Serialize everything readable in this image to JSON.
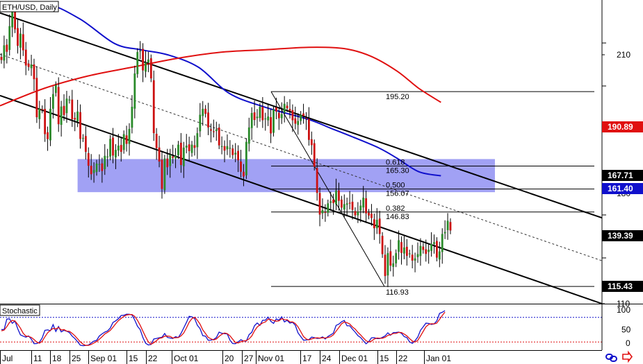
{
  "window": {
    "title": "ETH/USD, Daily"
  },
  "indicator": {
    "title": "Stochastic"
  },
  "colors": {
    "sma_fast": "#1010cc",
    "sma_slow": "#e01010",
    "zone": "#8c8cf2",
    "bull": "#2a8a2a",
    "bear": "#cc1010"
  },
  "icons": [
    "link-icon",
    "arrow-icon"
  ],
  "chart_data": [
    {
      "type": "candlestick",
      "title": "ETH/USD, Daily",
      "ylim": [
        110,
        232
      ],
      "y_ticks": [
        210,
        180,
        110
      ],
      "x_ticks": [
        "Jul",
        "11",
        "18",
        "25",
        "Sep 01",
        "15",
        "22",
        "Oct 01",
        "20",
        "27",
        "Nov 01",
        "17",
        "24",
        "Dec 01",
        "15",
        "22",
        "Jan 01"
      ],
      "price_labels": [
        {
          "value": 190.89,
          "style": "red"
        },
        {
          "value": 167.71,
          "style": "black"
        },
        {
          "value": 161.4,
          "style": "blue"
        },
        {
          "value": 139.39,
          "style": "black"
        },
        {
          "value": 115.43,
          "style": "black"
        }
      ],
      "fibonacci": [
        {
          "price": "195.20"
        },
        {
          "ratio": "0.618",
          "price": "165.30"
        },
        {
          "ratio": "0.500",
          "price": "156.07"
        },
        {
          "ratio": "0.382",
          "price": "146.83"
        },
        {
          "price": "116.93"
        }
      ],
      "fib_swing": {
        "high": 195.2,
        "low": 116.93
      },
      "resistance_zone": [
        154.8,
        168.1
      ],
      "channel": {
        "upper": [
          [
            0,
            226.8
          ],
          [
            1,
            144.5
          ]
        ],
        "lower": [
          [
            0,
            193.6
          ],
          [
            1,
            110.0
          ]
        ]
      },
      "close": [
        207.9,
        213.8,
        211.2,
        221.5,
        228.0,
        220.2,
        213.6,
        218.5,
        211.8,
        205.7,
        205.1,
        206.1,
        200.2,
        184.9,
        188.4,
        188.0,
        178.1,
        176.1,
        188.3,
        194.2,
        197.8,
        182.1,
        189.2,
        185.8,
        192.4,
        192.0,
        184.1,
        184.0,
        187.2,
        176.2,
        176.6,
        171.0,
        165.4,
        162.0,
        163.7,
        166.3,
        166.1,
        163.3,
        169.4,
        169.1,
        176.2,
        169.5,
        171.8,
        173.5,
        171.0,
        178.1,
        174.2,
        180.2,
        189.1,
        202.5,
        211.1,
        211.6,
        203.7,
        206.9,
        208.1,
        200.5,
        178.5,
        172.5,
        167.1,
        156.1,
        168.3,
        164.8,
        169.9,
        168.6,
        169.4,
        173.9,
        165.7,
        172.7,
        173.5,
        171.3,
        173.9,
        172.6,
        178.5,
        185.9,
        188.3,
        186.3,
        180.8,
        179.5,
        179.1,
        180.0,
        173.6,
        173.3,
        171.5,
        173.3,
        172.6,
        169.7,
        170.6,
        167.6,
        163.0,
        161.1,
        175.0,
        180.8,
        186.6,
        183.8,
        185.1,
        189.1,
        183.7,
        184.4,
        185.2,
        178.4,
        188.1,
        187.2,
        184.5,
        186.2,
        190.3,
        188.5,
        187.5,
        183.7,
        182.3,
        183.4,
        185.9,
        185.4,
        184.5,
        175.8,
        173.7,
        165.0,
        154.5,
        145.8,
        147.6,
        146.8,
        150.3,
        151.1,
        150.4,
        155.5,
        151.3,
        148.6,
        150.0,
        150.3,
        150.2,
        147.7,
        145.5,
        146.9,
        149.4,
        152.6,
        146.3,
        145.4,
        144.4,
        140.3,
        143.7,
        138.0,
        129.9,
        121.1,
        130.3,
        125.3,
        126.2,
        130.3,
        135.5,
        130.4,
        132.6,
        129.2,
        130.2,
        127.3,
        128.2,
        129.9,
        133.2,
        131.6,
        130.0,
        131.7,
        134.0,
        134.7,
        128.5,
        131.0,
        138.0,
        138.8,
        143.3,
        139.4
      ],
      "series": [
        {
          "name": "",
          "role": "sma_fast",
          "x": [
            0.0,
            0.1,
            0.18,
            0.26,
            0.32,
            0.38,
            0.45,
            0.52,
            0.6,
            0.7,
            0.75,
            0.8,
            0.86,
            0.9,
            0.95,
            1.0
          ],
          "y": [
            228.5,
            230.5,
            224.5,
            214.5,
            212.0,
            210.0,
            205.0,
            194.5,
            189.0,
            184.0,
            180.5,
            177.0,
            172.5,
            168.5,
            163.0,
            161.4
          ]
        },
        {
          "name": "",
          "role": "sma_slow",
          "x": [
            0.0,
            0.1,
            0.2,
            0.3,
            0.4,
            0.5,
            0.6,
            0.7,
            0.78,
            0.84,
            0.9,
            0.95,
            1.0
          ],
          "y": [
            189.5,
            196.5,
            201.5,
            205.0,
            208.5,
            211.0,
            212.0,
            213.0,
            212.5,
            209.5,
            203.5,
            196.5,
            190.9
          ]
        }
      ]
    },
    {
      "type": "line",
      "title": "Stochastic",
      "ylim": [
        0,
        100
      ],
      "y_ticks": [
        100,
        50,
        0
      ],
      "levels": [
        80,
        20
      ],
      "series": [
        {
          "name": "",
          "role": "k",
          "values": [
            50.3,
            50.2,
            75.9,
            76.5,
            65.6,
            71.2,
            52.4,
            37.3,
            34.3,
            31.7,
            34.7,
            26.7,
            15.7,
            16.1,
            19.3,
            29.9,
            48.5,
            49.5,
            47.3,
            62.4,
            45.6,
            57.8,
            44.6,
            48.5,
            46.3,
            42.9,
            34.2,
            28.3,
            20.6,
            12.0,
            10.9,
            11.6,
            12.6,
            17.5,
            22.0,
            23.9,
            34.6,
            39.8,
            44.1,
            46.9,
            53.9,
            67.7,
            71.6,
            77.0,
            84.7,
            85.3,
            87.8,
            87.6,
            86.0,
            73.8,
            58.3,
            50.1,
            30.6,
            16.9,
            12.5,
            13.9,
            27.2,
            28.7,
            30.4,
            31.5,
            40.6,
            31.1,
            29.7,
            28.5,
            32.8,
            30.6,
            40.9,
            54.2,
            67.6,
            82.7,
            81.3,
            77.3,
            60.7,
            52.6,
            35.3,
            34.2,
            24.2,
            24.6,
            26.3,
            30.9,
            44.1,
            41.0,
            40.4,
            39.7,
            24.1,
            16.1,
            15.8,
            20.2,
            25.5,
            22.3,
            22.2,
            37.9,
            43.6,
            59.7,
            66.2,
            60.5,
            72.8,
            73.3,
            80.9,
            70.5,
            65.4,
            76.3,
            73.2,
            81.5,
            68.9,
            72.9,
            66.1,
            67.9,
            60.9,
            42.2,
            33.2,
            24.3,
            24.7,
            25.7,
            31.9,
            30.5,
            28.7,
            29.1,
            32.4,
            27.3,
            33.4,
            37.4,
            41.5,
            60.5,
            63.6,
            69.5,
            72.6,
            59.5,
            59.5,
            51.4,
            44.0,
            35.4,
            30.9,
            22.9,
            15.5,
            21.1,
            30.1,
            30.5,
            28.1,
            28.1,
            31.2,
            34.7,
            42.3,
            36.5,
            42.9,
            43.3,
            44.0,
            41.2,
            33.1,
            30.6,
            19.9,
            16.6,
            23.1,
            31.9,
            48.5,
            57.0,
            65.9,
            65.2,
            62.7,
            64.0,
            71.5,
            89.9,
            92.5,
            96.6
          ]
        },
        {
          "name": "",
          "role": "d",
          "values": [
            47.0,
            48.9,
            57.5,
            67.6,
            72.7,
            71.1,
            63.1,
            53.6,
            41.3,
            34.4,
            33.6,
            31.0,
            25.7,
            19.5,
            17.0,
            21.8,
            32.6,
            42.6,
            48.4,
            53.0,
            51.8,
            55.3,
            49.3,
            50.3,
            46.5,
            45.9,
            41.1,
            35.1,
            27.7,
            20.3,
            14.5,
            11.5,
            11.7,
            13.9,
            17.4,
            21.1,
            26.8,
            32.8,
            39.5,
            43.6,
            48.3,
            56.1,
            64.4,
            72.1,
            77.7,
            82.3,
            85.9,
            86.9,
            87.1,
            82.5,
            72.7,
            60.7,
            46.3,
            32.5,
            20.0,
            14.4,
            17.9,
            23.3,
            28.8,
            30.2,
            34.2,
            34.4,
            33.8,
            29.8,
            30.3,
            30.6,
            34.8,
            41.9,
            54.2,
            68.2,
            77.2,
            80.4,
            73.1,
            63.5,
            49.5,
            40.7,
            31.2,
            27.7,
            25.0,
            27.3,
            33.8,
            38.7,
            41.8,
            40.4,
            34.7,
            26.6,
            18.7,
            17.4,
            20.5,
            22.7,
            23.3,
            27.5,
            34.6,
            47.1,
            56.5,
            62.1,
            66.5,
            68.9,
            75.7,
            75.0,
            72.3,
            70.7,
            71.6,
            77.0,
            74.5,
            74.4,
            69.3,
            69.0,
            65.0,
            57.0,
            45.4,
            33.2,
            27.4,
            24.9,
            27.4,
            29.4,
            30.4,
            29.4,
            30.1,
            29.6,
            31.0,
            32.7,
            37.4,
            46.5,
            55.2,
            64.5,
            68.6,
            67.2,
            63.9,
            56.8,
            51.6,
            43.6,
            37.1,
            29.7,
            23.1,
            19.8,
            22.2,
            27.2,
            29.6,
            28.9,
            29.1,
            31.3,
            36.1,
            37.8,
            40.6,
            40.9,
            43.4,
            42.8,
            39.4,
            35.0,
            27.9,
            22.4,
            19.9,
            23.9,
            34.5,
            45.8,
            57.1,
            62.7,
            64.6,
            64.0,
            66.1,
            75.2,
            84.6,
            93.0
          ]
        }
      ]
    }
  ]
}
